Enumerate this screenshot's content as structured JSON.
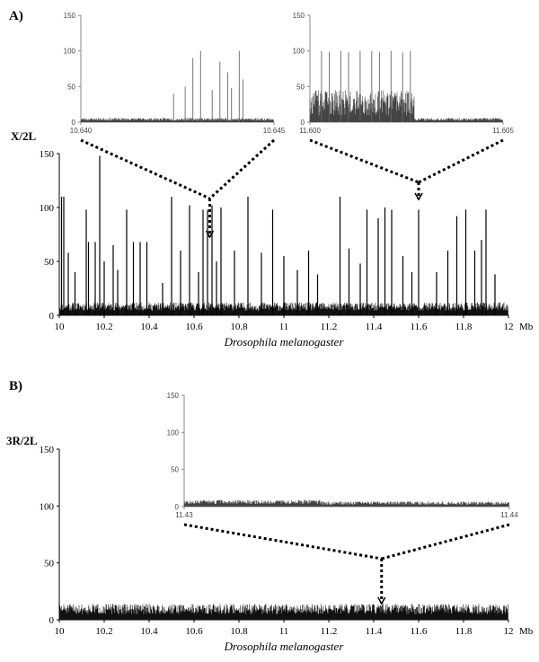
{
  "panels": {
    "a": {
      "letter": "A)",
      "chrom": "X/2L",
      "unit": "Mb"
    },
    "b": {
      "letter": "B)",
      "chrom": "3R/2L",
      "unit": "Mb"
    }
  },
  "chart_data": [
    {
      "id": "A-main",
      "type": "bar",
      "title": "",
      "panel": "A)",
      "series_label": "X/2L",
      "xlabel": "Drosophila melanogaster",
      "xunit": "Mb",
      "xlim": [
        10,
        12
      ],
      "ylim": [
        0,
        150
      ],
      "xticks": [
        "10",
        "10.2",
        "10.4",
        "10.6",
        "10.8",
        "11",
        "11.2",
        "11.4",
        "11.6",
        "11.8",
        "12"
      ],
      "yticks": [
        "0",
        "50",
        "100",
        "150"
      ],
      "baseline_noise_max": 12,
      "peaks": [
        {
          "x": 10.01,
          "y": 110
        },
        {
          "x": 10.02,
          "y": 110
        },
        {
          "x": 10.04,
          "y": 58
        },
        {
          "x": 10.07,
          "y": 40
        },
        {
          "x": 10.12,
          "y": 98
        },
        {
          "x": 10.13,
          "y": 68
        },
        {
          "x": 10.16,
          "y": 68
        },
        {
          "x": 10.18,
          "y": 148
        },
        {
          "x": 10.2,
          "y": 50
        },
        {
          "x": 10.24,
          "y": 65
        },
        {
          "x": 10.26,
          "y": 42
        },
        {
          "x": 10.3,
          "y": 98
        },
        {
          "x": 10.33,
          "y": 68
        },
        {
          "x": 10.36,
          "y": 68
        },
        {
          "x": 10.39,
          "y": 68
        },
        {
          "x": 10.46,
          "y": 30
        },
        {
          "x": 10.5,
          "y": 110
        },
        {
          "x": 10.54,
          "y": 60
        },
        {
          "x": 10.58,
          "y": 102
        },
        {
          "x": 10.62,
          "y": 40
        },
        {
          "x": 10.64,
          "y": 98
        },
        {
          "x": 10.66,
          "y": 98
        },
        {
          "x": 10.68,
          "y": 102
        },
        {
          "x": 10.7,
          "y": 50
        },
        {
          "x": 10.72,
          "y": 100
        },
        {
          "x": 10.78,
          "y": 60
        },
        {
          "x": 10.84,
          "y": 110
        },
        {
          "x": 10.9,
          "y": 58
        },
        {
          "x": 10.95,
          "y": 98
        },
        {
          "x": 11.0,
          "y": 55
        },
        {
          "x": 11.06,
          "y": 42
        },
        {
          "x": 11.11,
          "y": 60
        },
        {
          "x": 11.15,
          "y": 38
        },
        {
          "x": 11.25,
          "y": 110
        },
        {
          "x": 11.29,
          "y": 62
        },
        {
          "x": 11.34,
          "y": 48
        },
        {
          "x": 11.37,
          "y": 98
        },
        {
          "x": 11.42,
          "y": 90
        },
        {
          "x": 11.45,
          "y": 100
        },
        {
          "x": 11.48,
          "y": 98
        },
        {
          "x": 11.53,
          "y": 55
        },
        {
          "x": 11.57,
          "y": 40
        },
        {
          "x": 11.6,
          "y": 98
        },
        {
          "x": 11.68,
          "y": 40
        },
        {
          "x": 11.73,
          "y": 60
        },
        {
          "x": 11.77,
          "y": 92
        },
        {
          "x": 11.81,
          "y": 98
        },
        {
          "x": 11.85,
          "y": 60
        },
        {
          "x": 11.88,
          "y": 70
        },
        {
          "x": 11.9,
          "y": 98
        },
        {
          "x": 11.94,
          "y": 38
        }
      ],
      "annotations": [
        {
          "type": "arrow",
          "x": 10.67,
          "target": "A-inset-left"
        },
        {
          "type": "arrow",
          "x": 11.6,
          "target": "A-inset-right"
        }
      ]
    },
    {
      "id": "A-inset-left",
      "type": "bar",
      "title": "",
      "xlim": [
        10.64,
        10.645
      ],
      "ylim": [
        0,
        150
      ],
      "xticks": [
        "10.640",
        "10.645"
      ],
      "yticks": [
        "0",
        "50",
        "100",
        "150"
      ],
      "baseline_noise_max": 6,
      "peaks": [
        {
          "x": 10.6424,
          "y": 40
        },
        {
          "x": 10.6427,
          "y": 50
        },
        {
          "x": 10.6429,
          "y": 90
        },
        {
          "x": 10.6431,
          "y": 100
        },
        {
          "x": 10.6434,
          "y": 45
        },
        {
          "x": 10.6436,
          "y": 85
        },
        {
          "x": 10.6438,
          "y": 70
        },
        {
          "x": 10.6439,
          "y": 48
        },
        {
          "x": 10.6441,
          "y": 100
        },
        {
          "x": 10.6442,
          "y": 60
        }
      ]
    },
    {
      "id": "A-inset-right",
      "type": "bar",
      "title": "",
      "xlim": [
        11.6,
        11.605
      ],
      "ylim": [
        0,
        150
      ],
      "xticks": [
        "11.600",
        "11.605"
      ],
      "yticks": [
        "0",
        "50",
        "100",
        "150"
      ],
      "baseline_noise_max": 6,
      "dense_region": [
        11.6,
        11.6027
      ],
      "dense_level": 45,
      "peaks": [
        {
          "x": 11.6003,
          "y": 100
        },
        {
          "x": 11.6005,
          "y": 98
        },
        {
          "x": 11.6008,
          "y": 100
        },
        {
          "x": 11.601,
          "y": 98
        },
        {
          "x": 11.6013,
          "y": 100
        },
        {
          "x": 11.6016,
          "y": 100
        },
        {
          "x": 11.6018,
          "y": 98
        },
        {
          "x": 11.6021,
          "y": 100
        },
        {
          "x": 11.6024,
          "y": 98
        },
        {
          "x": 11.6026,
          "y": 100
        }
      ]
    },
    {
      "id": "B-main",
      "type": "bar",
      "title": "",
      "panel": "B)",
      "series_label": "3R/2L",
      "xlabel": "Drosophila melanogaster",
      "xunit": "Mb",
      "xlim": [
        10,
        12
      ],
      "ylim": [
        0,
        150
      ],
      "xticks": [
        "10",
        "10.2",
        "10.4",
        "10.6",
        "10.8",
        "11",
        "11.2",
        "11.4",
        "11.6",
        "11.8",
        "12"
      ],
      "yticks": [
        "0",
        "50",
        "100",
        "150"
      ],
      "baseline_noise_max": 14,
      "peaks": [],
      "annotations": [
        {
          "type": "arrow",
          "x": 11.435,
          "target": "B-inset"
        }
      ]
    },
    {
      "id": "B-inset",
      "type": "bar",
      "title": "",
      "xlim": [
        11.43,
        11.44
      ],
      "ylim": [
        0,
        150
      ],
      "xticks": [
        "11.43",
        "11.44"
      ],
      "yticks": [
        "0",
        "50",
        "100",
        "150"
      ],
      "baseline_noise_max": 7,
      "raised_region": [
        11.43,
        11.4342
      ],
      "raised_level": 9,
      "peaks": []
    }
  ]
}
